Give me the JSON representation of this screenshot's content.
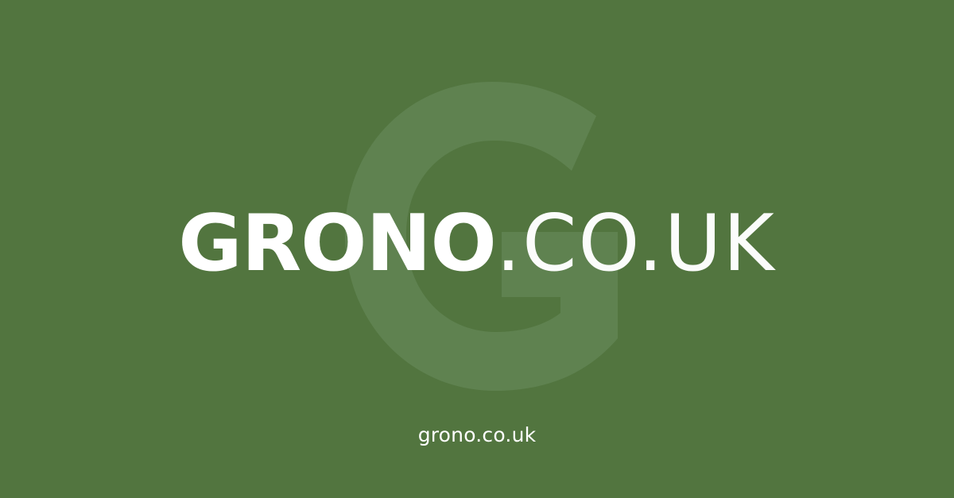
{
  "brand": {
    "logo_primary": "GRONO",
    "logo_secondary": ".CO.UK",
    "watermark_letter": "G"
  },
  "footer": {
    "url": "grono.co.uk"
  },
  "colors": {
    "background": "#52753f",
    "watermark": "#5f8250",
    "text": "#ffffff"
  }
}
